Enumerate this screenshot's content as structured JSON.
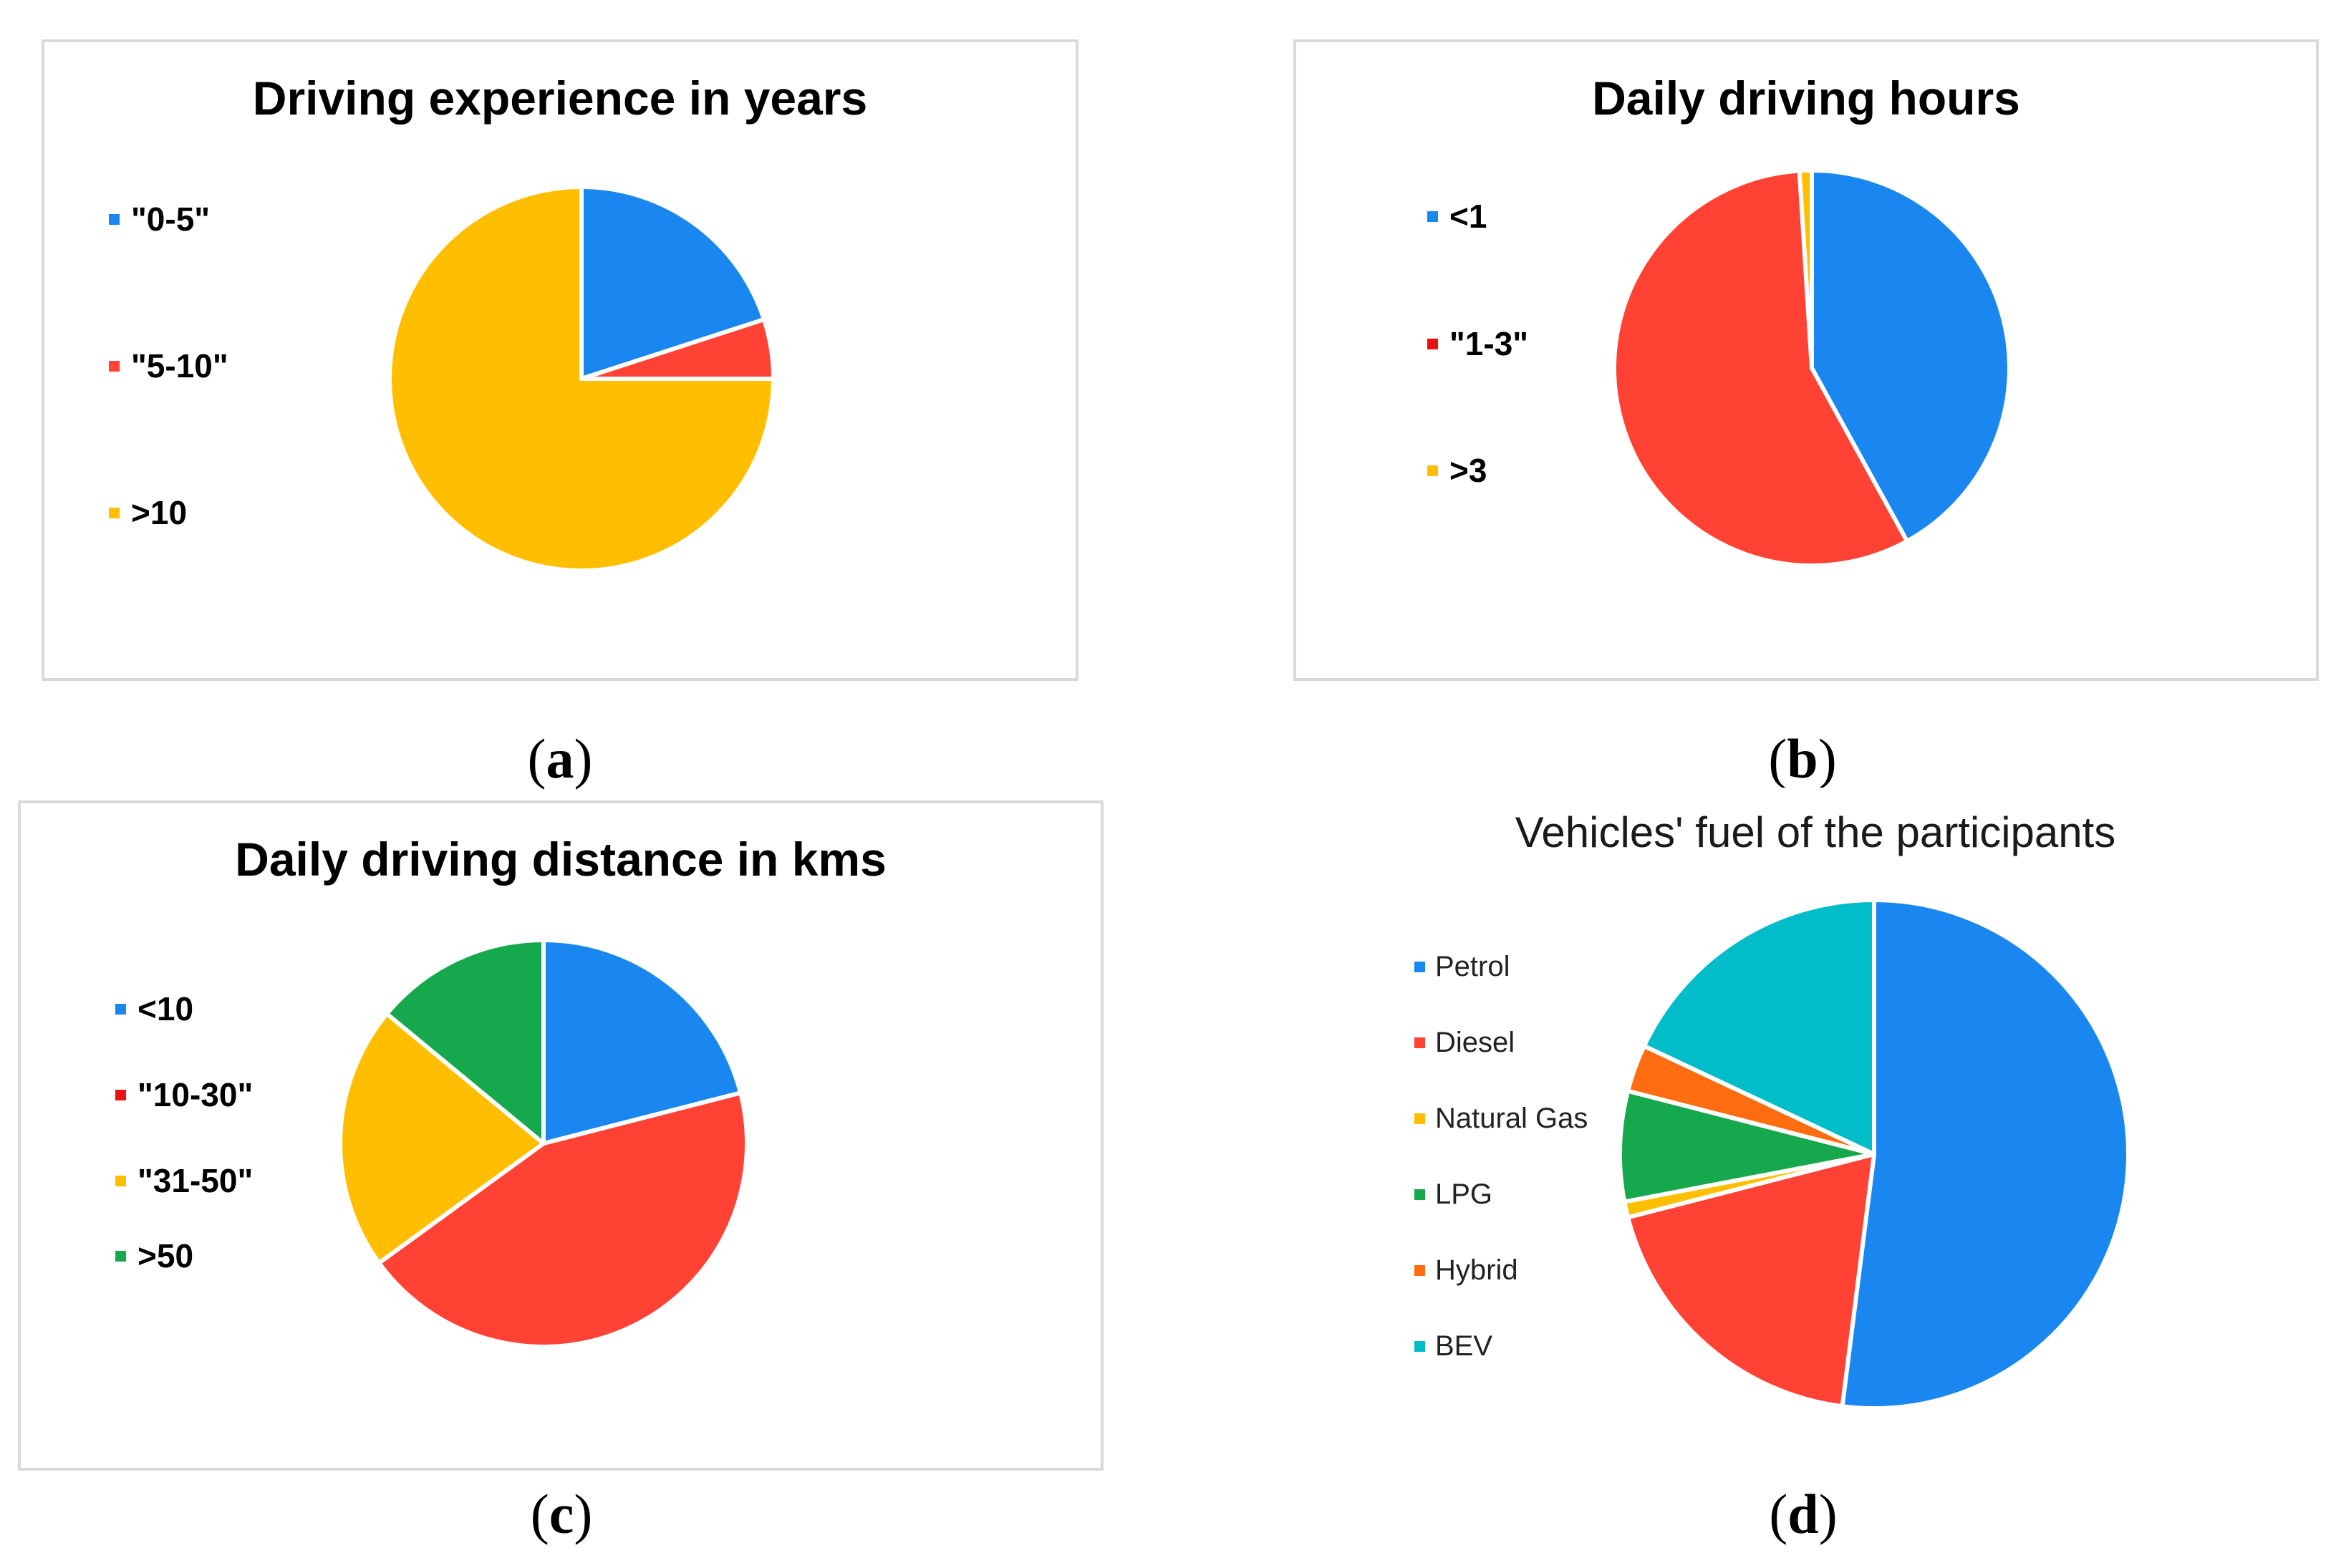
{
  "chart_data": [
    {
      "id": "a",
      "type": "pie",
      "title": "Driving experience in years",
      "categories": [
        "\"0-5\"",
        "\"5-10\"",
        ">10"
      ],
      "values": [
        20,
        5,
        75
      ],
      "colors": [
        "#1a87f0",
        "#ff4233",
        "#ffbf00"
      ],
      "legend": "left",
      "caption": "a"
    },
    {
      "id": "b",
      "type": "pie",
      "title": "Daily driving hours",
      "categories": [
        "<1",
        "\"1-3\"",
        ">3"
      ],
      "values": [
        42,
        57,
        1
      ],
      "colors": [
        "#1a87f0",
        "#ff4233",
        "#ffbf00"
      ],
      "legend_colors": [
        "#1a87f0",
        "#e81010",
        "#ffbf00"
      ],
      "legend": "left",
      "caption": "b"
    },
    {
      "id": "c",
      "type": "pie",
      "title": "Daily driving distance in kms",
      "categories": [
        "<10",
        "\"10-30\"",
        "\"31-50\"",
        ">50"
      ],
      "values": [
        21,
        44,
        21,
        14
      ],
      "colors": [
        "#1a87f0",
        "#ff4233",
        "#ffbf00",
        "#16a84c"
      ],
      "legend_colors": [
        "#1a87f0",
        "#e81010",
        "#ffbf00",
        "#16a84c"
      ],
      "legend": "left",
      "caption": "c"
    },
    {
      "id": "d",
      "type": "pie",
      "title": "Vehicles' fuel of the participants",
      "categories": [
        "Petrol",
        "Diesel",
        "Natural Gas",
        "LPG",
        "Hybrid",
        "BEV"
      ],
      "values": [
        52,
        19,
        1,
        7,
        3,
        18
      ],
      "colors": [
        "#1a87f0",
        "#ff4233",
        "#ffbf00",
        "#16a84c",
        "#ff6d10",
        "#00bdc9"
      ],
      "legend": "left",
      "caption": "d"
    }
  ]
}
